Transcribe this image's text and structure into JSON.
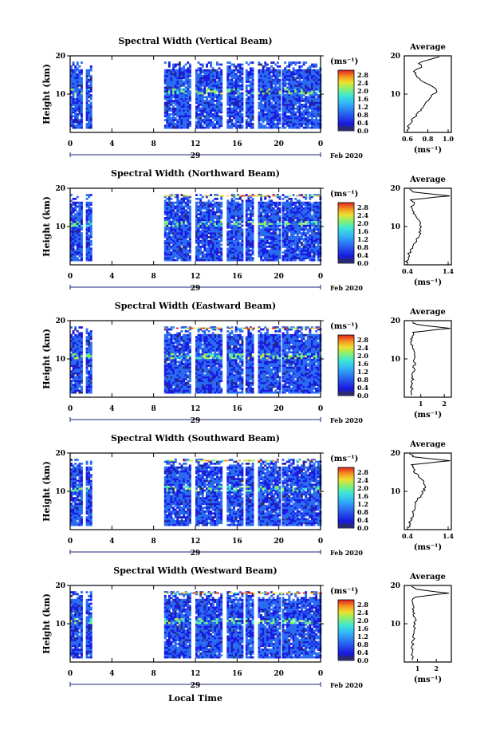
{
  "x_axis": {
    "tick_labels": [
      "0",
      "4",
      "8",
      "12",
      "16",
      "20",
      "0"
    ],
    "day_label": "29",
    "month_label": "Feb 2020",
    "title": "Local Time"
  },
  "y_axis": {
    "label": "Height (km)",
    "tick_labels": [
      "20",
      "10"
    ]
  },
  "colorbar": {
    "unit": "(ms⁻¹)",
    "tick_labels": [
      "2.8",
      "2.4",
      "2.0",
      "1.6",
      "1.2",
      "0.8",
      "0.4",
      "0.0"
    ]
  },
  "average": {
    "title": "Average",
    "unit": "(ms⁻¹)"
  },
  "panels": [
    {
      "title": "Spectral Width (Vertical Beam)",
      "avg_ticks": [
        "0.6",
        "0.8",
        "1.0"
      ]
    },
    {
      "title": "Spectral Width (Northward Beam)",
      "avg_ticks": [
        "0.4",
        "1.4"
      ]
    },
    {
      "title": "Spectral Width (Eastward Beam)",
      "avg_ticks": [
        "1",
        "2"
      ]
    },
    {
      "title": "Spectral Width (Southward Beam)",
      "avg_ticks": [
        "0.4",
        "1.4"
      ]
    },
    {
      "title": "Spectral Width (Westward Beam)",
      "avg_ticks": [
        "1",
        "2"
      ]
    }
  ],
  "colors": {
    "background_field": "#2b5fd9",
    "colormap": [
      "#2a2a6e",
      "#1a1ae0",
      "#2a6cf0",
      "#33b3f5",
      "#3ee6d6",
      "#8ef06a",
      "#f0e030",
      "#f59020",
      "#e02020"
    ]
  },
  "chart_data": [
    {
      "type": "heatmap",
      "title": "Spectral Width (Vertical Beam)",
      "xlabel": "",
      "ylabel": "Height (km)",
      "x_range_hours": [
        0,
        24
      ],
      "y_range_km": [
        0,
        20
      ],
      "colorbar_range": [
        0.0,
        2.8
      ],
      "data_periods_hours": [
        [
          0,
          1
        ],
        [
          1.5,
          2
        ],
        [
          9,
          11.5
        ],
        [
          12,
          14.5
        ],
        [
          15,
          16.5
        ],
        [
          16.8,
          17.5
        ],
        [
          18,
          20
        ],
        [
          20.3,
          24
        ]
      ],
      "average_profile": {
        "xlim": [
          0.6,
          1.0
        ],
        "height_km": [
          1,
          3,
          5,
          7,
          9,
          11,
          13,
          14,
          15,
          16,
          17,
          18,
          19,
          20
        ],
        "value": [
          0.63,
          0.66,
          0.72,
          0.76,
          0.82,
          0.88,
          0.78,
          0.72,
          0.7,
          0.68,
          0.75,
          0.72,
          0.8,
          0.92
        ]
      }
    },
    {
      "type": "heatmap",
      "title": "Spectral Width (Northward Beam)",
      "ylabel": "Height (km)",
      "x_range_hours": [
        0,
        24
      ],
      "y_range_km": [
        0,
        20
      ],
      "colorbar_range": [
        0.0,
        2.8
      ],
      "data_periods_hours": [
        [
          0,
          1
        ],
        [
          1.5,
          2
        ],
        [
          9,
          11.5
        ],
        [
          12,
          14.5
        ],
        [
          15,
          16.5
        ],
        [
          16.8,
          17.5
        ],
        [
          18,
          20
        ],
        [
          20.3,
          24
        ]
      ],
      "average_profile": {
        "xlim": [
          0.4,
          1.4
        ],
        "height_km": [
          1,
          3,
          5,
          7,
          9,
          11,
          13,
          15,
          16,
          17,
          18,
          19,
          20
        ],
        "value": [
          0.45,
          0.5,
          0.6,
          0.68,
          0.76,
          0.72,
          0.62,
          0.55,
          0.6,
          0.55,
          1.35,
          0.6,
          0.5
        ]
      }
    },
    {
      "type": "heatmap",
      "title": "Spectral Width (Eastward Beam)",
      "ylabel": "Height (km)",
      "x_range_hours": [
        0,
        24
      ],
      "y_range_km": [
        0,
        20
      ],
      "colorbar_range": [
        0.0,
        2.8
      ],
      "data_periods_hours": [
        [
          0,
          1
        ],
        [
          1.5,
          2
        ],
        [
          9,
          11.5
        ],
        [
          12,
          14.5
        ],
        [
          15,
          16.5
        ],
        [
          16.8,
          17.5
        ],
        [
          18,
          20
        ],
        [
          20.3,
          24
        ]
      ],
      "average_profile": {
        "xlim": [
          0.3,
          2.3
        ],
        "height_km": [
          1,
          3,
          5,
          7,
          9,
          11,
          13,
          15,
          16,
          17,
          18,
          19,
          20
        ],
        "value": [
          0.6,
          0.62,
          0.66,
          0.7,
          0.74,
          0.72,
          0.66,
          0.6,
          0.62,
          0.7,
          2.2,
          0.8,
          0.6
        ]
      }
    },
    {
      "type": "heatmap",
      "title": "Spectral Width (Southward Beam)",
      "ylabel": "Height (km)",
      "x_range_hours": [
        0,
        24
      ],
      "y_range_km": [
        0,
        20
      ],
      "colorbar_range": [
        0.0,
        2.8
      ],
      "data_periods_hours": [
        [
          0,
          1
        ],
        [
          1.5,
          2
        ],
        [
          9,
          11.5
        ],
        [
          12,
          14.5
        ],
        [
          15,
          16.5
        ],
        [
          16.8,
          17.5
        ],
        [
          18,
          20
        ],
        [
          20.3,
          24
        ]
      ],
      "average_profile": {
        "xlim": [
          0.4,
          1.4
        ],
        "height_km": [
          1,
          3,
          5,
          7,
          9,
          11,
          13,
          15,
          16,
          17,
          18,
          19,
          20
        ],
        "value": [
          0.5,
          0.55,
          0.6,
          0.65,
          0.75,
          0.85,
          0.8,
          0.62,
          0.6,
          0.55,
          1.38,
          0.6,
          0.5
        ]
      }
    },
    {
      "type": "heatmap",
      "title": "Spectral Width (Westward Beam)",
      "ylabel": "Height (km)",
      "x_range_hours": [
        0,
        24
      ],
      "y_range_km": [
        0,
        20
      ],
      "colorbar_range": [
        0.0,
        2.8
      ],
      "data_periods_hours": [
        [
          0,
          1
        ],
        [
          1.5,
          2
        ],
        [
          9,
          11.5
        ],
        [
          12,
          14.5
        ],
        [
          15,
          16.5
        ],
        [
          16.8,
          17.5
        ],
        [
          18,
          20
        ],
        [
          20.3,
          24
        ]
      ],
      "average_profile": {
        "xlim": [
          0.3,
          2.8
        ],
        "height_km": [
          1,
          3,
          5,
          7,
          9,
          11,
          13,
          15,
          16,
          17,
          18,
          19,
          20
        ],
        "value": [
          0.7,
          0.72,
          0.76,
          0.8,
          0.85,
          0.88,
          0.8,
          0.72,
          0.78,
          0.85,
          2.6,
          0.9,
          0.7
        ]
      }
    }
  ]
}
